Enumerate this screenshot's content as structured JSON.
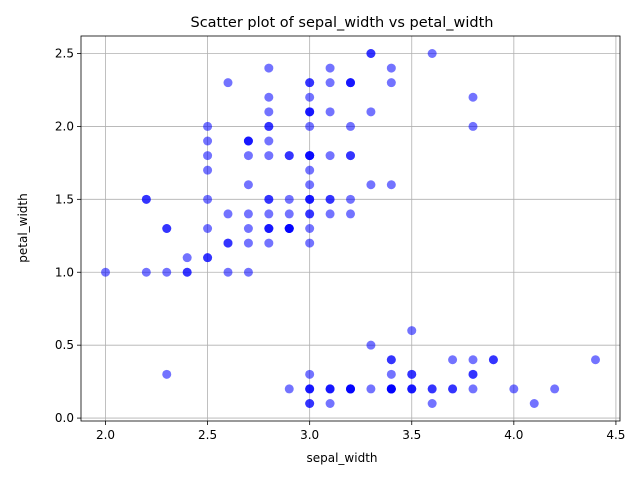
{
  "chart_data": {
    "type": "scatter",
    "title": "Scatter plot of sepal_width vs petal_width",
    "xlabel": "sepal_width",
    "ylabel": "petal_width",
    "xlim": [
      1.88,
      4.52
    ],
    "ylim": [
      -0.02,
      2.62
    ],
    "xticks": [
      2.0,
      2.5,
      3.0,
      3.5,
      4.0,
      4.5
    ],
    "xtick_labels": [
      "2.0",
      "2.5",
      "3.0",
      "3.5",
      "4.0",
      "4.5"
    ],
    "yticks": [
      0.0,
      0.5,
      1.0,
      1.5,
      2.0,
      2.5
    ],
    "ytick_labels": [
      "0.0",
      "0.5",
      "1.0",
      "1.5",
      "2.0",
      "2.5"
    ],
    "grid": true,
    "marker_color": "#0000ff",
    "marker_alpha": 0.55,
    "points": [
      [
        3.5,
        0.2
      ],
      [
        3.0,
        0.2
      ],
      [
        3.2,
        0.2
      ],
      [
        3.1,
        0.2
      ],
      [
        3.6,
        0.2
      ],
      [
        3.9,
        0.4
      ],
      [
        3.4,
        0.3
      ],
      [
        3.4,
        0.2
      ],
      [
        2.9,
        0.2
      ],
      [
        3.1,
        0.1
      ],
      [
        3.7,
        0.2
      ],
      [
        3.4,
        0.2
      ],
      [
        3.0,
        0.1
      ],
      [
        3.0,
        0.1
      ],
      [
        4.0,
        0.2
      ],
      [
        4.4,
        0.4
      ],
      [
        3.9,
        0.4
      ],
      [
        3.5,
        0.3
      ],
      [
        3.8,
        0.3
      ],
      [
        3.8,
        0.3
      ],
      [
        3.4,
        0.2
      ],
      [
        3.7,
        0.4
      ],
      [
        3.6,
        0.2
      ],
      [
        3.3,
        0.5
      ],
      [
        3.4,
        0.2
      ],
      [
        3.0,
        0.2
      ],
      [
        3.4,
        0.4
      ],
      [
        3.5,
        0.2
      ],
      [
        3.4,
        0.2
      ],
      [
        3.2,
        0.2
      ],
      [
        3.1,
        0.2
      ],
      [
        3.4,
        0.4
      ],
      [
        4.1,
        0.1
      ],
      [
        4.2,
        0.2
      ],
      [
        3.1,
        0.2
      ],
      [
        3.2,
        0.2
      ],
      [
        3.5,
        0.2
      ],
      [
        3.6,
        0.1
      ],
      [
        3.0,
        0.2
      ],
      [
        3.4,
        0.2
      ],
      [
        3.5,
        0.3
      ],
      [
        2.3,
        0.3
      ],
      [
        3.2,
        0.2
      ],
      [
        3.5,
        0.6
      ],
      [
        3.8,
        0.4
      ],
      [
        3.0,
        0.3
      ],
      [
        3.8,
        0.2
      ],
      [
        3.2,
        0.2
      ],
      [
        3.7,
        0.2
      ],
      [
        3.3,
        0.2
      ],
      [
        3.2,
        1.4
      ],
      [
        3.2,
        1.5
      ],
      [
        3.1,
        1.5
      ],
      [
        2.3,
        1.3
      ],
      [
        2.8,
        1.5
      ],
      [
        2.8,
        1.3
      ],
      [
        3.3,
        1.6
      ],
      [
        2.4,
        1.0
      ],
      [
        2.9,
        1.3
      ],
      [
        2.7,
        1.4
      ],
      [
        2.0,
        1.0
      ],
      [
        3.0,
        1.5
      ],
      [
        2.2,
        1.0
      ],
      [
        2.9,
        1.4
      ],
      [
        2.9,
        1.3
      ],
      [
        3.1,
        1.4
      ],
      [
        3.0,
        1.5
      ],
      [
        2.7,
        1.0
      ],
      [
        2.2,
        1.5
      ],
      [
        2.5,
        1.1
      ],
      [
        3.2,
        1.8
      ],
      [
        2.8,
        1.3
      ],
      [
        2.5,
        1.5
      ],
      [
        2.8,
        1.2
      ],
      [
        2.9,
        1.3
      ],
      [
        3.0,
        1.4
      ],
      [
        2.8,
        1.4
      ],
      [
        3.0,
        1.7
      ],
      [
        2.9,
        1.5
      ],
      [
        2.6,
        1.0
      ],
      [
        2.4,
        1.1
      ],
      [
        2.4,
        1.0
      ],
      [
        2.7,
        1.2
      ],
      [
        2.7,
        1.6
      ],
      [
        3.0,
        1.5
      ],
      [
        3.4,
        1.6
      ],
      [
        3.1,
        1.5
      ],
      [
        2.3,
        1.3
      ],
      [
        3.0,
        1.3
      ],
      [
        2.5,
        1.3
      ],
      [
        2.6,
        1.2
      ],
      [
        3.0,
        1.4
      ],
      [
        2.6,
        1.2
      ],
      [
        2.3,
        1.0
      ],
      [
        2.7,
        1.3
      ],
      [
        3.0,
        1.2
      ],
      [
        2.9,
        1.3
      ],
      [
        2.9,
        1.3
      ],
      [
        2.5,
        1.1
      ],
      [
        2.8,
        1.3
      ],
      [
        3.3,
        2.5
      ],
      [
        2.7,
        1.9
      ],
      [
        3.0,
        2.1
      ],
      [
        2.9,
        1.8
      ],
      [
        3.0,
        2.2
      ],
      [
        3.0,
        2.1
      ],
      [
        2.5,
        1.7
      ],
      [
        2.9,
        1.8
      ],
      [
        2.5,
        1.8
      ],
      [
        3.6,
        2.5
      ],
      [
        3.2,
        2.0
      ],
      [
        2.7,
        1.9
      ],
      [
        3.0,
        2.1
      ],
      [
        2.5,
        2.0
      ],
      [
        2.8,
        2.4
      ],
      [
        3.2,
        2.3
      ],
      [
        3.0,
        1.8
      ],
      [
        3.8,
        2.2
      ],
      [
        2.6,
        2.3
      ],
      [
        2.2,
        1.5
      ],
      [
        3.2,
        2.3
      ],
      [
        2.8,
        2.0
      ],
      [
        2.8,
        2.0
      ],
      [
        2.7,
        1.8
      ],
      [
        3.3,
        2.1
      ],
      [
        3.2,
        1.8
      ],
      [
        2.8,
        1.8
      ],
      [
        3.0,
        1.8
      ],
      [
        2.8,
        2.1
      ],
      [
        3.0,
        1.6
      ],
      [
        2.8,
        1.9
      ],
      [
        3.8,
        2.0
      ],
      [
        2.8,
        2.2
      ],
      [
        2.8,
        1.5
      ],
      [
        2.6,
        1.4
      ],
      [
        3.0,
        2.3
      ],
      [
        3.4,
        2.4
      ],
      [
        3.1,
        1.8
      ],
      [
        3.0,
        1.8
      ],
      [
        3.1,
        2.1
      ],
      [
        3.1,
        2.4
      ],
      [
        3.1,
        2.3
      ],
      [
        2.7,
        1.9
      ],
      [
        3.2,
        2.3
      ],
      [
        3.3,
        2.5
      ],
      [
        3.0,
        2.3
      ],
      [
        2.5,
        1.9
      ],
      [
        3.0,
        2.0
      ],
      [
        3.4,
        2.3
      ],
      [
        3.0,
        1.8
      ]
    ]
  }
}
